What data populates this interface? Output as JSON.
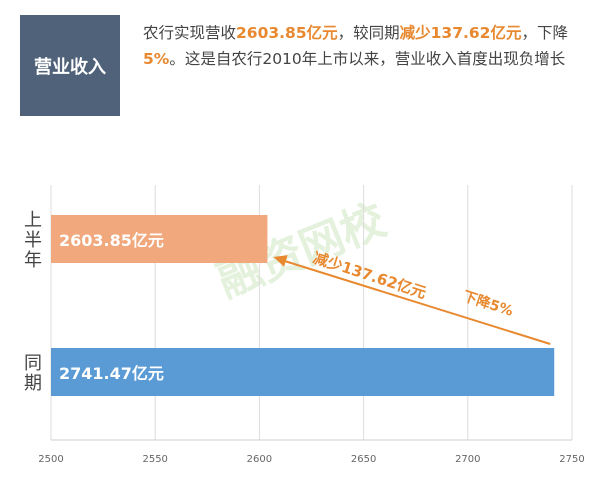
{
  "header": {
    "badge": "营业收入",
    "desc_1": "农行实现营收",
    "revenue": "2603.85亿元",
    "desc_2": "，较同期",
    "decrease_label": "减少137.62亿元",
    "desc_3": "，下降",
    "decrease_pct": "5%",
    "desc_4": "。这是自农行2010年上市以来，营业收入首度出现负增长"
  },
  "chart_data": {
    "type": "bar",
    "orientation": "horizontal",
    "categories": [
      "上半年",
      "同期"
    ],
    "values": [
      2603.85,
      2741.47
    ],
    "value_labels": [
      "2603.85亿元",
      "2741.47亿元"
    ],
    "colors": [
      "#f0a87c",
      "#5b9bd5"
    ],
    "xlim": [
      2500,
      2750
    ],
    "xticks": [
      "2500",
      "2550",
      "2600",
      "2650",
      "2700",
      "2750"
    ],
    "grid": true,
    "annotation": {
      "text_1": "减少137.62亿元",
      "text_2": "下降5%",
      "color": "#e8882f"
    }
  },
  "watermark": "融资网校"
}
